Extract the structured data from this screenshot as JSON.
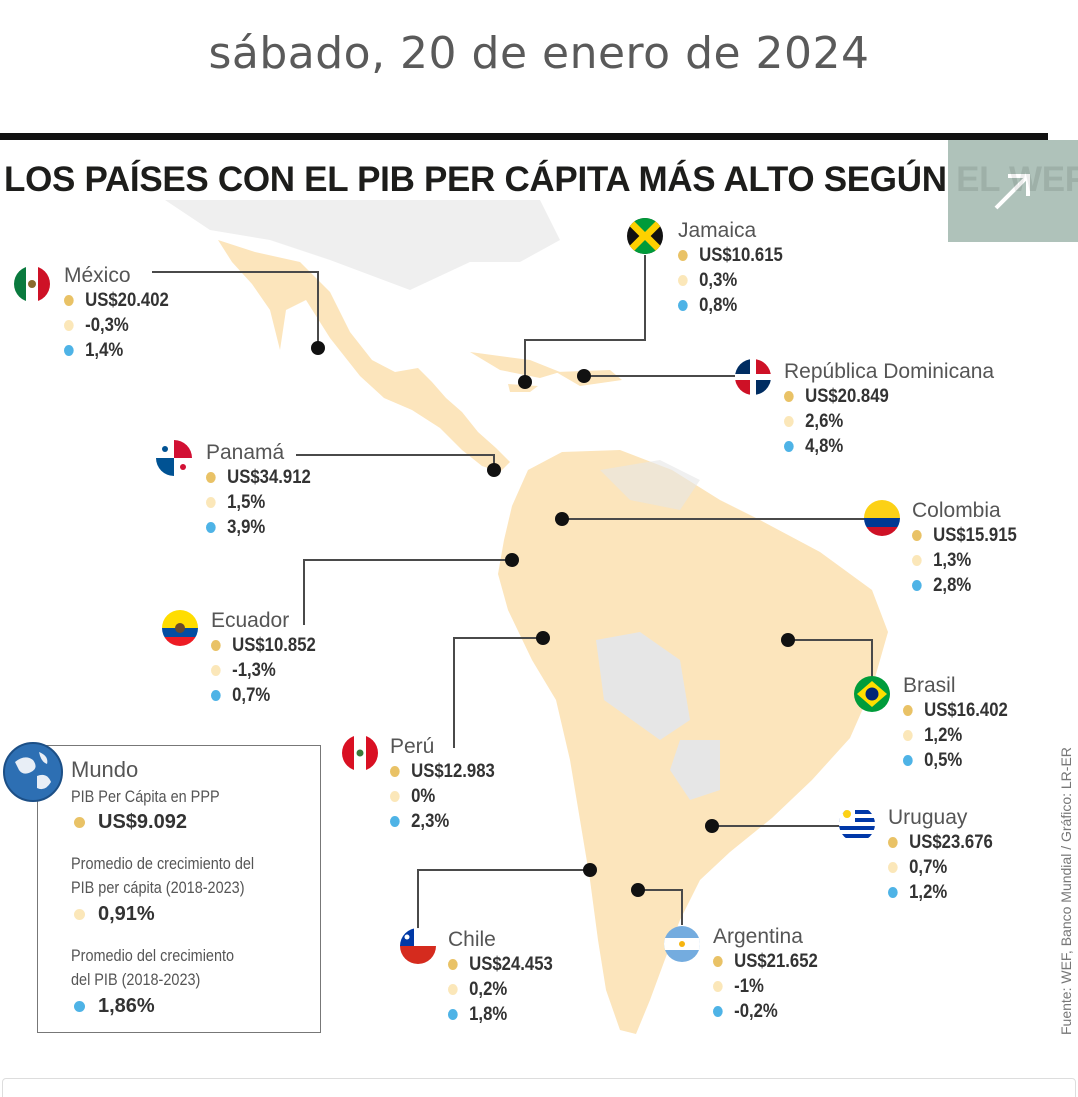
{
  "date": "sábado, 20 de enero de 2024",
  "headline": "LOS PAÍSES CON EL PIB PER CÁPITA MÁS ALTO SEGÚN EL WEF",
  "expand_icon": "expand-arrow-icon",
  "source": "Fuente: WEF, Banco Mundial / Gráfico: LR-ER",
  "legend_colors": {
    "pib": "#e9c266",
    "crecimiento_pib_per_capita": "#fbe7b9",
    "crecimiento_pib": "#4eb3e6"
  },
  "countries": {
    "mexico": {
      "name": "México",
      "pib": "US$20.402",
      "c1": "-0,3%",
      "c2": "1,4%"
    },
    "jamaica": {
      "name": "Jamaica",
      "pib": "US$10.615",
      "c1": "0,3%",
      "c2": "0,8%"
    },
    "dominicana": {
      "name": "República Dominicana",
      "pib": "US$20.849",
      "c1": "2,6%",
      "c2": "4,8%"
    },
    "panama": {
      "name": "Panamá",
      "pib": "US$34.912",
      "c1": "1,5%",
      "c2": "3,9%"
    },
    "colombia": {
      "name": "Colombia",
      "pib": "US$15.915",
      "c1": "1,3%",
      "c2": "2,8%"
    },
    "ecuador": {
      "name": "Ecuador",
      "pib": "US$10.852",
      "c1": "-1,3%",
      "c2": "0,7%"
    },
    "brasil": {
      "name": "Brasil",
      "pib": "US$16.402",
      "c1": "1,2%",
      "c2": "0,5%"
    },
    "peru": {
      "name": "Perú",
      "pib": "US$12.983",
      "c1": "0%",
      "c2": "2,3%"
    },
    "uruguay": {
      "name": "Uruguay",
      "pib": "US$23.676",
      "c1": "0,7%",
      "c2": "1,2%"
    },
    "chile": {
      "name": "Chile",
      "pib": "US$24.453",
      "c1": "0,2%",
      "c2": "1,8%"
    },
    "argentina": {
      "name": "Argentina",
      "pib": "US$21.652",
      "c1": "-1%",
      "c2": "-0,2%"
    }
  },
  "mundo": {
    "name": "Mundo",
    "label1": "PIB Per Cápita en PPP",
    "value1": "US$9.092",
    "label2a": "Promedio de crecimiento del",
    "label2b": "PIB per cápita (2018-2023)",
    "value2": "0,91%",
    "label3a": "Promedio del crecimiento",
    "label3b": "del PIB (2018-2023)",
    "value3": "1,86%"
  }
}
